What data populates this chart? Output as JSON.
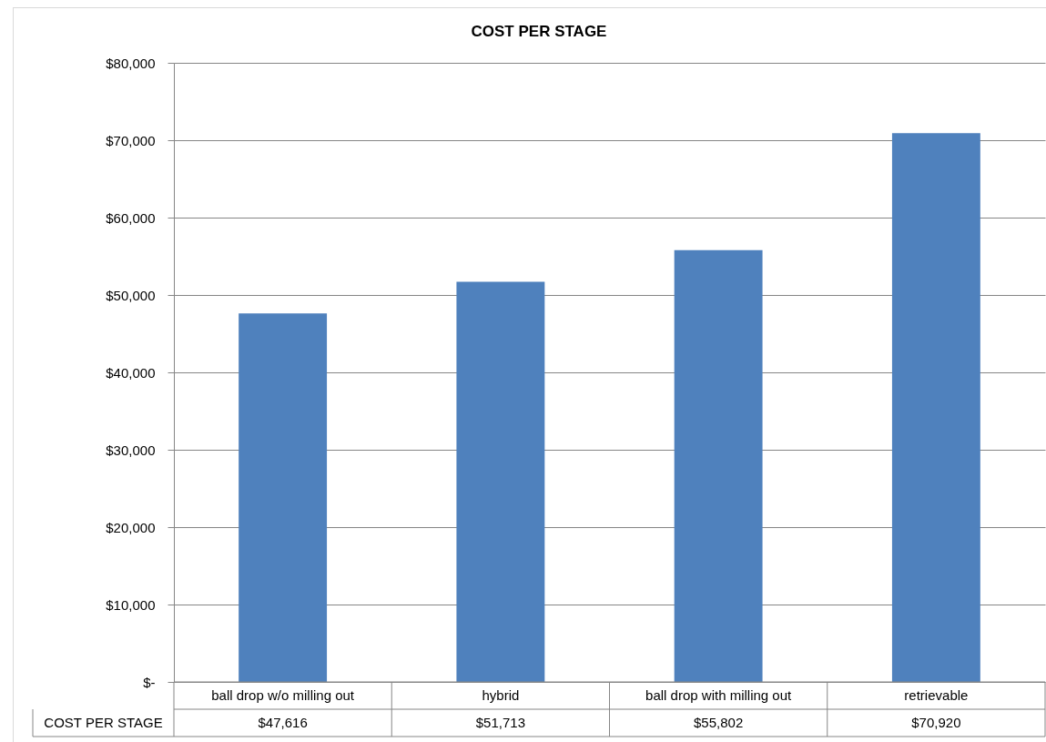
{
  "chart_data": {
    "type": "bar",
    "title": "COST PER STAGE",
    "categories": [
      "ball drop w/o milling out",
      "hybrid",
      "ball drop with milling out",
      "retrievable"
    ],
    "series": [
      {
        "name": "COST PER STAGE",
        "color": "#4f81bd",
        "values": [
          47616,
          51713,
          55802,
          70920
        ],
        "value_labels": [
          "$47,616",
          "$51,713",
          "$55,802",
          "$70,920"
        ]
      }
    ],
    "ylim": [
      0,
      80000
    ],
    "yticks": [
      {
        "value": 0,
        "label": "$-"
      },
      {
        "value": 10000,
        "label": "$10,000"
      },
      {
        "value": 20000,
        "label": "$20,000"
      },
      {
        "value": 30000,
        "label": "$30,000"
      },
      {
        "value": 40000,
        "label": "$40,000"
      },
      {
        "value": 50000,
        "label": "$50,000"
      },
      {
        "value": 60000,
        "label": "$60,000"
      },
      {
        "value": 70000,
        "label": "$70,000"
      },
      {
        "value": 80000,
        "label": "$80,000"
      }
    ],
    "grid": "y",
    "legend": false
  }
}
